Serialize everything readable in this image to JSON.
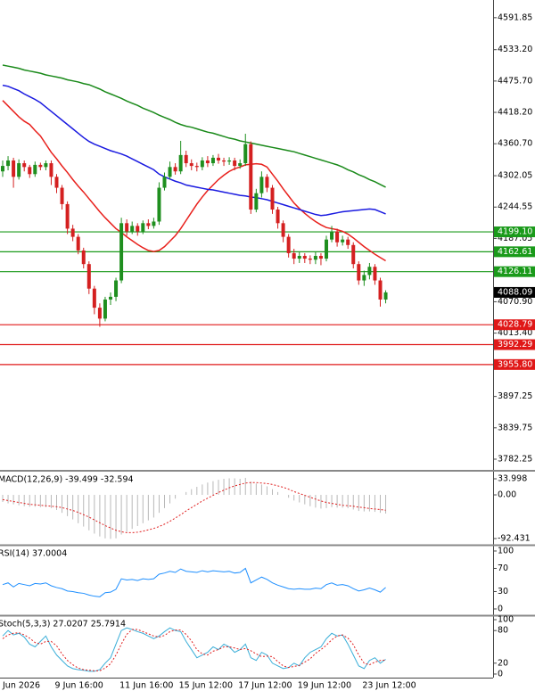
{
  "chart_data": [
    {
      "type": "candlestick",
      "up_color": "#1f8f1f",
      "down_color": "#d42020",
      "ylim": [
        3762.6,
        4624.3
      ],
      "yticks": [
        4591.85,
        {
          "value": 4533.2,
          "label": "4533.20"
        },
        {
          "value": 4475.7,
          "label": "4475.70"
        },
        {
          "value": 4418.2,
          "label": "4418.20"
        },
        {
          "value": 4360.7,
          "label": "4360.70"
        },
        4302.05,
        4244.55,
        4187.05,
        {
          "value": 4070.9,
          "label": "4070.90"
        },
        {
          "value": 4013.4,
          "label": "4013.40"
        },
        3897.25,
        3839.75,
        3782.25
      ],
      "ohlc": [
        [
          4310,
          4330,
          4300,
          4320
        ],
        [
          4320,
          4338,
          4312,
          4330
        ],
        [
          4330,
          4335,
          4280,
          4300
        ],
        [
          4300,
          4332,
          4295,
          4325
        ],
        [
          4325,
          4330,
          4310,
          4318
        ],
        [
          4318,
          4322,
          4298,
          4305
        ],
        [
          4305,
          4328,
          4300,
          4322
        ],
        [
          4322,
          4326,
          4312,
          4318
        ],
        [
          4318,
          4330,
          4312,
          4325
        ],
        [
          4325,
          4330,
          4285,
          4300
        ],
        [
          4300,
          4305,
          4270,
          4280
        ],
        [
          4280,
          4285,
          4240,
          4250
        ],
        [
          4250,
          4255,
          4195,
          4205
        ],
        [
          4205,
          4212,
          4182,
          4190
        ],
        [
          4190,
          4195,
          4158,
          4165
        ],
        [
          4165,
          4170,
          4132,
          4140
        ],
        [
          4140,
          4145,
          4085,
          4095
        ],
        [
          4095,
          4100,
          4048,
          4060
        ],
        [
          4060,
          4068,
          4025,
          4040
        ],
        [
          4040,
          4080,
          4035,
          4075
        ],
        [
          4075,
          4088,
          4065,
          4080
        ],
        [
          4080,
          4115,
          4072,
          4110
        ],
        [
          4110,
          4225,
          4105,
          4215
        ],
        [
          4215,
          4222,
          4192,
          4200
        ],
        [
          4200,
          4218,
          4195,
          4210
        ],
        [
          4210,
          4215,
          4192,
          4200
        ],
        [
          4200,
          4220,
          4195,
          4215
        ],
        [
          4215,
          4222,
          4204,
          4210
        ],
        [
          4210,
          4225,
          4205,
          4218
        ],
        [
          4218,
          4290,
          4212,
          4280
        ],
        [
          4280,
          4308,
          4275,
          4300
        ],
        [
          4300,
          4328,
          4295,
          4318
        ],
        [
          4318,
          4325,
          4304,
          4310
        ],
        [
          4310,
          4366,
          4305,
          4340
        ],
        [
          4340,
          4348,
          4318,
          4325
        ],
        [
          4325,
          4332,
          4312,
          4320
        ],
        [
          4320,
          4326,
          4310,
          4318
        ],
        [
          4318,
          4336,
          4312,
          4330
        ],
        [
          4330,
          4338,
          4318,
          4325
        ],
        [
          4325,
          4340,
          4320,
          4335
        ],
        [
          4335,
          4342,
          4324,
          4330
        ],
        [
          4330,
          4335,
          4320,
          4328
        ],
        [
          4328,
          4336,
          4322,
          4330
        ],
        [
          4330,
          4335,
          4312,
          4320
        ],
        [
          4320,
          4332,
          4315,
          4325
        ],
        [
          4325,
          4379,
          4320,
          4360
        ],
        [
          4360,
          4365,
          4232,
          4240
        ],
        [
          4240,
          4278,
          4235,
          4270
        ],
        [
          4270,
          4310,
          4262,
          4300
        ],
        [
          4300,
          4305,
          4272,
          4280
        ],
        [
          4280,
          4285,
          4232,
          4240
        ],
        [
          4240,
          4245,
          4205,
          4215
        ],
        [
          4215,
          4220,
          4180,
          4190
        ],
        [
          4190,
          4195,
          4152,
          4160
        ],
        [
          4160,
          4168,
          4140,
          4150
        ],
        [
          4150,
          4162,
          4142,
          4155
        ],
        [
          4155,
          4160,
          4142,
          4150
        ],
        [
          4150,
          4156,
          4140,
          4148
        ],
        [
          4148,
          4162,
          4140,
          4155
        ],
        [
          4155,
          4160,
          4138,
          4150
        ],
        [
          4150,
          4192,
          4145,
          4185
        ],
        [
          4185,
          4210,
          4180,
          4200
        ],
        [
          4200,
          4205,
          4172,
          4180
        ],
        [
          4180,
          4192,
          4174,
          4185
        ],
        [
          4185,
          4190,
          4168,
          4175
        ],
        [
          4175,
          4180,
          4132,
          4140
        ],
        [
          4140,
          4145,
          4102,
          4110
        ],
        [
          4110,
          4128,
          4100,
          4120
        ],
        [
          4120,
          4142,
          4112,
          4135
        ],
        [
          4135,
          4140,
          4102,
          4110
        ],
        [
          4110,
          4115,
          4062,
          4075
        ],
        [
          4075,
          4092,
          4068,
          4088.09
        ]
      ],
      "series": [
        {
          "color": "#e8201c",
          "values": [
            4440,
            4430,
            4420,
            4410,
            4402,
            4396,
            4385,
            4375,
            4360,
            4345,
            4333,
            4320,
            4308,
            4295,
            4283,
            4272,
            4260,
            4248,
            4236,
            4225,
            4215,
            4205,
            4198,
            4190,
            4183,
            4176,
            4170,
            4165,
            4163,
            4165,
            4172,
            4182,
            4192,
            4205,
            4220,
            4235,
            4250,
            4263,
            4275,
            4285,
            4295,
            4303,
            4310,
            4315,
            4318,
            4322,
            4323,
            4324,
            4323,
            4318,
            4305,
            4292,
            4278,
            4265,
            4252,
            4242,
            4233,
            4225,
            4218,
            4212,
            4207,
            4205,
            4203,
            4200,
            4195,
            4188,
            4180,
            4172,
            4165,
            4158,
            4152,
            4146
          ]
        },
        {
          "color": "#1a1ae0",
          "values": [
            4468,
            4466,
            4462,
            4458,
            4452,
            4447,
            4442,
            4436,
            4428,
            4420,
            4412,
            4404,
            4396,
            4388,
            4380,
            4372,
            4365,
            4360,
            4356,
            4352,
            4348,
            4345,
            4342,
            4338,
            4333,
            4328,
            4323,
            4318,
            4313,
            4305,
            4300,
            4296,
            4292,
            4289,
            4285,
            4283,
            4281,
            4279,
            4277,
            4276,
            4274,
            4272,
            4270,
            4268,
            4266,
            4265,
            4263,
            4262,
            4260,
            4258,
            4255,
            4252,
            4249,
            4246,
            4243,
            4240,
            4237,
            4234,
            4231,
            4229,
            4230,
            4232,
            4234,
            4236,
            4237,
            4238,
            4239,
            4240,
            4241,
            4240,
            4236,
            4232
          ]
        },
        {
          "color": "#1a8a1a",
          "values": [
            4505,
            4503,
            4501,
            4499,
            4496,
            4494,
            4492,
            4490,
            4487,
            4485,
            4483,
            4481,
            4478,
            4476,
            4474,
            4471,
            4469,
            4465,
            4461,
            4456,
            4452,
            4448,
            4444,
            4439,
            4435,
            4431,
            4426,
            4422,
            4418,
            4413,
            4409,
            4405,
            4400,
            4396,
            4393,
            4391,
            4388,
            4385,
            4382,
            4380,
            4377,
            4374,
            4371,
            4369,
            4366,
            4364,
            4362,
            4360,
            4358,
            4356,
            4354,
            4352,
            4350,
            4348,
            4346,
            4343,
            4340,
            4337,
            4334,
            4331,
            4328,
            4325,
            4322,
            4318,
            4313,
            4309,
            4304,
            4300,
            4295,
            4291,
            4286,
            4281
          ]
        }
      ],
      "levels": [
        {
          "value": 4199.1,
          "label": "4199.10",
          "color": "#1a9a1a"
        },
        {
          "value": 4162.61,
          "label": "4162.61",
          "color": "#1a9a1a"
        },
        {
          "value": 4126.11,
          "label": "4126.11",
          "color": "#1a9a1a"
        },
        {
          "value": 4028.79,
          "label": "4028.79",
          "color": "#e01818"
        },
        {
          "value": 3992.29,
          "label": "3992.29",
          "color": "#e01818"
        },
        {
          "value": 3955.8,
          "label": "3955.80",
          "color": "#e01818"
        }
      ],
      "last_price": 4088.09
    },
    {
      "type": "macd",
      "title": "MACD(12,26,9) -39.499 -32.594",
      "ylim": [
        -105.6,
        49.1
      ],
      "yticks": [
        33.998,
        {
          "value": 0,
          "label": "0.00"
        },
        -92.431
      ],
      "series": [
        {
          "color": "#b8b8b8",
          "values": [
            -15,
            -18,
            -20,
            -22,
            -24,
            -25,
            -25,
            -26,
            -26,
            -28,
            -32,
            -38,
            -45,
            -52,
            -60,
            -67,
            -75,
            -82,
            -88,
            -92,
            -93,
            -92,
            -84,
            -78,
            -72,
            -66,
            -60,
            -54,
            -48,
            -38,
            -28,
            -18,
            -8,
            0,
            6,
            12,
            17,
            22,
            26,
            29,
            32,
            34,
            35,
            35,
            34,
            36,
            28,
            24,
            22,
            18,
            12,
            6,
            0,
            -6,
            -12,
            -16,
            -20,
            -24,
            -27,
            -29,
            -28,
            -26,
            -27,
            -27,
            -28,
            -31,
            -34,
            -35,
            -35,
            -36,
            -38,
            -39.499
          ]
        },
        {
          "color": "#e02020",
          "values": [
            -10,
            -12,
            -14,
            -16,
            -18,
            -20,
            -21,
            -22,
            -23,
            -24,
            -25,
            -27,
            -30,
            -33,
            -37,
            -42,
            -47,
            -53,
            -59,
            -65,
            -70,
            -75,
            -78,
            -80,
            -80,
            -79,
            -77,
            -74,
            -71,
            -67,
            -62,
            -56,
            -49,
            -42,
            -34,
            -27,
            -20,
            -13,
            -7,
            -1,
            5,
            10,
            15,
            19,
            22,
            25,
            26,
            26,
            25,
            24,
            22,
            19,
            16,
            12,
            7,
            3,
            -1,
            -5,
            -9,
            -13,
            -16,
            -18,
            -20,
            -22,
            -23,
            -24,
            -26,
            -27,
            -29,
            -30,
            -31,
            -32.594
          ]
        }
      ]
    },
    {
      "type": "line",
      "title": "RSI(14) 37.0004",
      "ylim": [
        -10.8,
        109.2
      ],
      "yticks": [
        100,
        70,
        30,
        0
      ],
      "series": [
        {
          "color": "#1e8fff",
          "values": [
            42,
            45,
            38,
            44,
            42,
            40,
            44,
            43,
            45,
            40,
            37,
            35,
            31,
            30,
            28,
            27,
            24,
            22,
            21,
            28,
            29,
            34,
            52,
            50,
            51,
            49,
            52,
            51,
            52,
            60,
            62,
            65,
            63,
            69,
            65,
            64,
            63,
            66,
            64,
            66,
            65,
            64,
            65,
            62,
            63,
            70,
            45,
            50,
            55,
            51,
            45,
            41,
            38,
            35,
            34,
            35,
            34,
            34,
            36,
            35,
            42,
            45,
            41,
            42,
            40,
            35,
            31,
            33,
            36,
            33,
            29,
            37.0004
          ]
        }
      ]
    },
    {
      "type": "line",
      "title": "Stoch(5,3,3) 27.0207 25.7914",
      "ylim": [
        -6.6,
        106.6
      ],
      "yticks": [
        100,
        80,
        20,
        0
      ],
      "series": [
        {
          "color": "#3aaed8",
          "values": [
            70,
            80,
            72,
            75,
            68,
            55,
            50,
            60,
            70,
            50,
            35,
            25,
            15,
            10,
            8,
            7,
            5,
            5,
            8,
            20,
            30,
            55,
            80,
            85,
            82,
            78,
            75,
            70,
            65,
            70,
            78,
            85,
            80,
            78,
            60,
            45,
            30,
            35,
            40,
            50,
            45,
            55,
            50,
            40,
            45,
            55,
            30,
            25,
            40,
            35,
            20,
            15,
            10,
            12,
            20,
            15,
            30,
            40,
            45,
            50,
            65,
            75,
            70,
            72,
            55,
            35,
            15,
            10,
            25,
            30,
            20,
            27.0207
          ]
        },
        {
          "color": "#e02020",
          "dashed": true,
          "values": [
            65,
            72,
            75,
            76,
            72,
            66,
            58,
            55,
            60,
            60,
            52,
            37,
            25,
            17,
            11,
            8,
            7,
            6,
            6,
            11,
            19,
            35,
            55,
            73,
            82,
            82,
            78,
            74,
            70,
            68,
            71,
            78,
            81,
            81,
            73,
            61,
            45,
            37,
            35,
            42,
            45,
            50,
            50,
            48,
            45,
            47,
            43,
            37,
            32,
            33,
            32,
            23,
            15,
            12,
            14,
            16,
            22,
            28,
            38,
            45,
            53,
            63,
            70,
            72,
            66,
            54,
            35,
            20,
            17,
            22,
            25,
            25.7914
          ]
        }
      ],
      "categories": [
        "Jun 2026",
        null,
        null,
        null,
        null,
        null,
        null,
        null,
        null,
        null,
        "9 Jun 16:00",
        null,
        null,
        null,
        null,
        null,
        null,
        null,
        null,
        null,
        null,
        null,
        "11 Jun 16:00",
        null,
        null,
        null,
        null,
        null,
        null,
        null,
        null,
        null,
        null,
        "15 Jun 12:00",
        null,
        null,
        null,
        null,
        null,
        null,
        null,
        null,
        null,
        null,
        "17 Jun 12:00",
        null,
        null,
        null,
        null,
        null,
        null,
        null,
        null,
        null,
        null,
        "19 Jun 12:00",
        null,
        null,
        null,
        null,
        null,
        null,
        null,
        null,
        null,
        null,
        null,
        "23 Jun 12:00",
        null,
        null,
        null,
        null
      ]
    }
  ]
}
